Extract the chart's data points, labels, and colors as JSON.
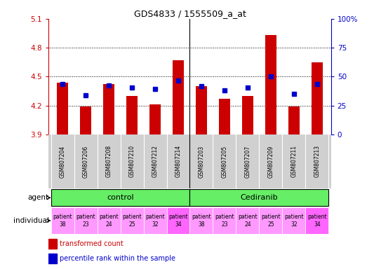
{
  "title": "GDS4833 / 1555509_a_at",
  "samples": [
    "GSM807204",
    "GSM807206",
    "GSM807208",
    "GSM807210",
    "GSM807212",
    "GSM807214",
    "GSM807203",
    "GSM807205",
    "GSM807207",
    "GSM807209",
    "GSM807211",
    "GSM807213"
  ],
  "red_values": [
    4.44,
    4.19,
    4.42,
    4.3,
    4.21,
    4.67,
    4.4,
    4.27,
    4.3,
    4.93,
    4.19,
    4.65
  ],
  "blue_values": [
    4.42,
    4.31,
    4.41,
    4.39,
    4.37,
    4.46,
    4.4,
    4.36,
    4.39,
    4.5,
    4.32,
    4.42
  ],
  "ylim_left": [
    3.9,
    5.1
  ],
  "ylim_right": [
    0,
    100
  ],
  "yticks_left": [
    3.9,
    4.2,
    4.5,
    4.8,
    5.1
  ],
  "ytick_labels_left": [
    "3.9",
    "4.2",
    "4.5",
    "4.8",
    "5.1"
  ],
  "yticks_right": [
    0,
    25,
    50,
    75,
    100
  ],
  "ytick_labels_right": [
    "0",
    "25",
    "50",
    "75",
    "100%"
  ],
  "bar_color": "#CC0000",
  "dot_color": "#0000CC",
  "bar_base": 3.9,
  "background_color": "#FFFFFF",
  "names_bg": "#D0D0D0",
  "green_color": "#66EE66",
  "pink_light": "#FF99FF",
  "pink_dark": "#FF66FF",
  "ind_labels": [
    "patient\n38",
    "patient\n23",
    "patient\n24",
    "patient\n25",
    "patient\n32",
    "patient\n34",
    "patient\n38",
    "patient\n23",
    "patient\n24",
    "patient\n25",
    "patient\n32",
    "patient\n34"
  ],
  "ind_dark_indices": [
    5,
    11
  ]
}
